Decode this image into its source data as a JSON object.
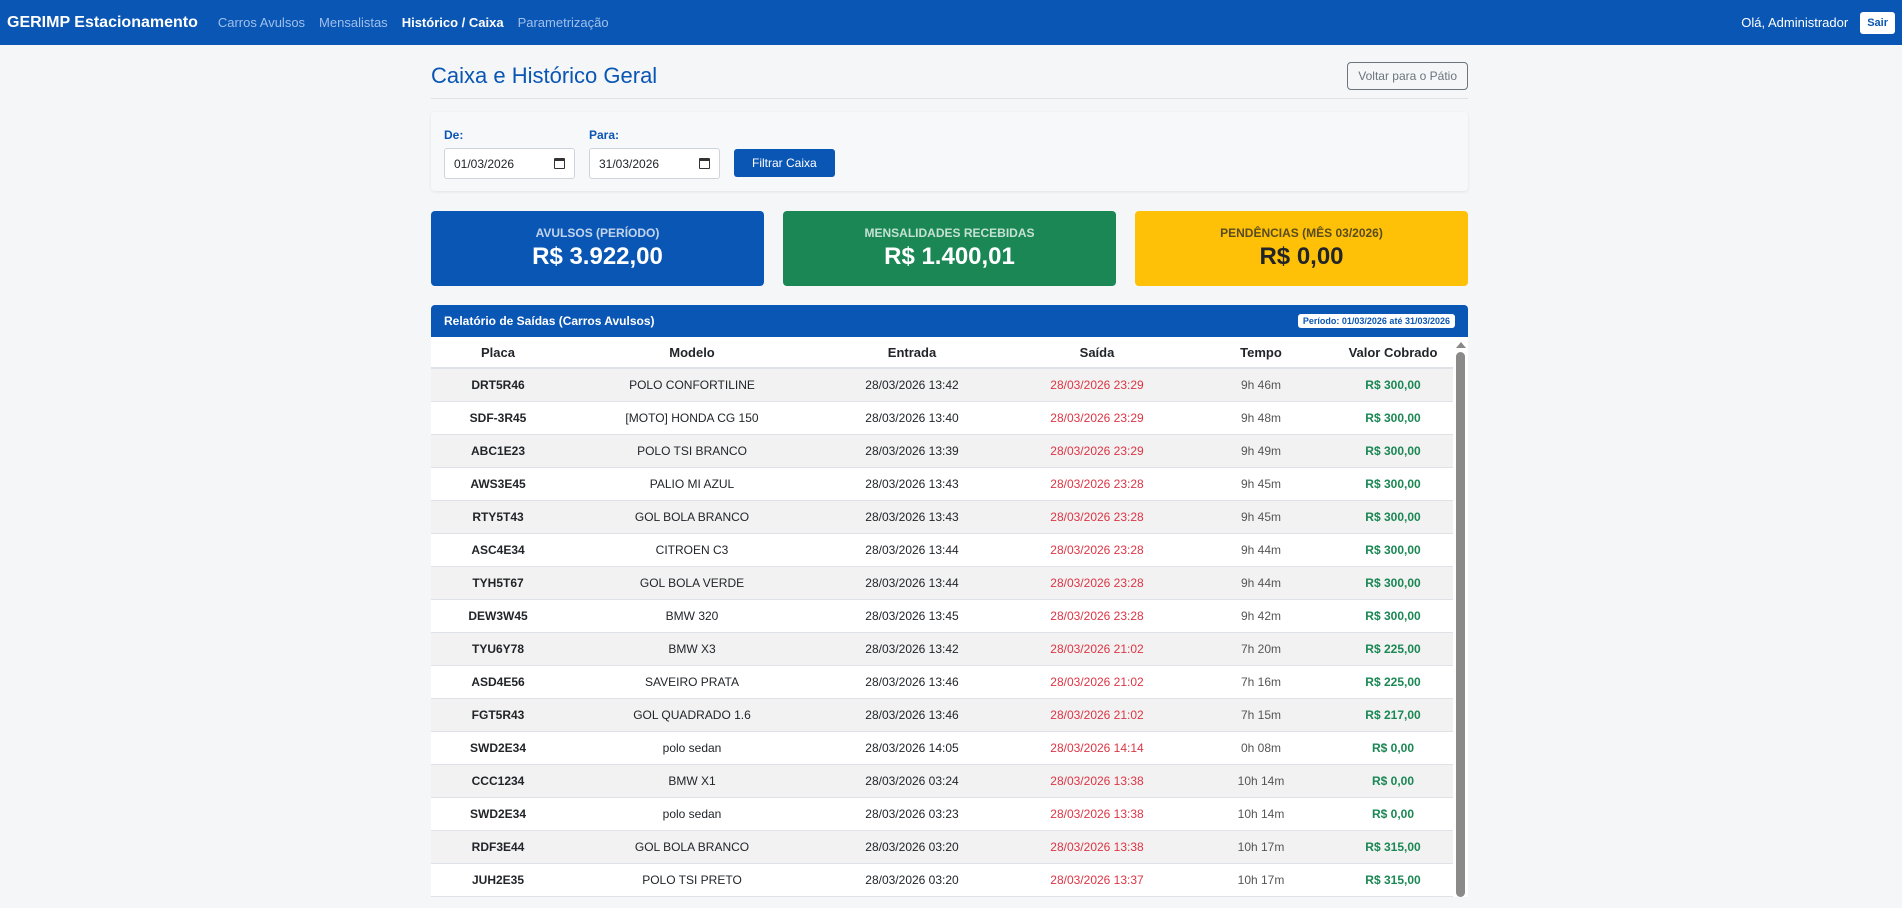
{
  "navbar": {
    "brand": "GERIMP Estacionamento",
    "links": [
      {
        "label": "Carros Avulsos",
        "active": false
      },
      {
        "label": "Mensalistas",
        "active": false
      },
      {
        "label": "Histórico / Caixa",
        "active": true
      },
      {
        "label": "Parametrização",
        "active": false
      }
    ],
    "greeting": "Olá, Administrador",
    "logout_label": "Sair"
  },
  "page": {
    "title": "Caixa e Histórico Geral",
    "back_button": "Voltar para o Pátio"
  },
  "filter": {
    "from_label": "De:",
    "from_value": "01/03/2026",
    "to_label": "Para:",
    "to_value": "31/03/2026",
    "submit_label": "Filtrar Caixa"
  },
  "summary": [
    {
      "label": "AVULSOS (PERÍODO)",
      "value": "R$ 3.922,00",
      "color": "#0a56b4"
    },
    {
      "label": "MENSALIDADES RECEBIDAS",
      "value": "R$ 1.400,01",
      "color": "#1a8754"
    },
    {
      "label": "PENDÊNCIAS (MÊS 03/2026)",
      "value": "R$ 0,00",
      "color": "#ffc107"
    }
  ],
  "report": {
    "title": "Relatório de Saídas (Carros Avulsos)",
    "period": "Período: 01/03/2026 até 31/03/2026",
    "columns": [
      "Placa",
      "Modelo",
      "Entrada",
      "Saída",
      "Tempo",
      "Valor Cobrado"
    ],
    "rows": [
      {
        "placa": "DRT5R46",
        "modelo": "POLO CONFORTILINE",
        "entrada": "28/03/2026 13:42",
        "saida": "28/03/2026 23:29",
        "tempo": "9h 46m",
        "valor": "R$ 300,00"
      },
      {
        "placa": "SDF-3R45",
        "modelo": "[MOTO] HONDA CG 150",
        "entrada": "28/03/2026 13:40",
        "saida": "28/03/2026 23:29",
        "tempo": "9h 48m",
        "valor": "R$ 300,00"
      },
      {
        "placa": "ABC1E23",
        "modelo": "POLO TSI BRANCO",
        "entrada": "28/03/2026 13:39",
        "saida": "28/03/2026 23:29",
        "tempo": "9h 49m",
        "valor": "R$ 300,00"
      },
      {
        "placa": "AWS3E45",
        "modelo": "PALIO MI AZUL",
        "entrada": "28/03/2026 13:43",
        "saida": "28/03/2026 23:28",
        "tempo": "9h 45m",
        "valor": "R$ 300,00"
      },
      {
        "placa": "RTY5T43",
        "modelo": "GOL BOLA BRANCO",
        "entrada": "28/03/2026 13:43",
        "saida": "28/03/2026 23:28",
        "tempo": "9h 45m",
        "valor": "R$ 300,00"
      },
      {
        "placa": "ASC4E34",
        "modelo": "CITROEN C3",
        "entrada": "28/03/2026 13:44",
        "saida": "28/03/2026 23:28",
        "tempo": "9h 44m",
        "valor": "R$ 300,00"
      },
      {
        "placa": "TYH5T67",
        "modelo": "GOL BOLA VERDE",
        "entrada": "28/03/2026 13:44",
        "saida": "28/03/2026 23:28",
        "tempo": "9h 44m",
        "valor": "R$ 300,00"
      },
      {
        "placa": "DEW3W45",
        "modelo": "BMW 320",
        "entrada": "28/03/2026 13:45",
        "saida": "28/03/2026 23:28",
        "tempo": "9h 42m",
        "valor": "R$ 300,00"
      },
      {
        "placa": "TYU6Y78",
        "modelo": "BMW X3",
        "entrada": "28/03/2026 13:42",
        "saida": "28/03/2026 21:02",
        "tempo": "7h 20m",
        "valor": "R$ 225,00"
      },
      {
        "placa": "ASD4E56",
        "modelo": "SAVEIRO PRATA",
        "entrada": "28/03/2026 13:46",
        "saida": "28/03/2026 21:02",
        "tempo": "7h 16m",
        "valor": "R$ 225,00"
      },
      {
        "placa": "FGT5R43",
        "modelo": "GOL QUADRADO 1.6",
        "entrada": "28/03/2026 13:46",
        "saida": "28/03/2026 21:02",
        "tempo": "7h 15m",
        "valor": "R$ 217,00"
      },
      {
        "placa": "SWD2E34",
        "modelo": "polo sedan",
        "entrada": "28/03/2026 14:05",
        "saida": "28/03/2026 14:14",
        "tempo": "0h 08m",
        "valor": "R$ 0,00"
      },
      {
        "placa": "CCC1234",
        "modelo": "BMW X1",
        "entrada": "28/03/2026 03:24",
        "saida": "28/03/2026 13:38",
        "tempo": "10h 14m",
        "valor": "R$ 0,00"
      },
      {
        "placa": "SWD2E34",
        "modelo": "polo sedan",
        "entrada": "28/03/2026 03:23",
        "saida": "28/03/2026 13:38",
        "tempo": "10h 14m",
        "valor": "R$ 0,00"
      },
      {
        "placa": "RDF3E44",
        "modelo": "GOL BOLA BRANCO",
        "entrada": "28/03/2026 03:20",
        "saida": "28/03/2026 13:38",
        "tempo": "10h 17m",
        "valor": "R$ 315,00"
      },
      {
        "placa": "JUH2E35",
        "modelo": "POLO TSI PRETO",
        "entrada": "28/03/2026 03:20",
        "saida": "28/03/2026 13:37",
        "tempo": "10h 17m",
        "valor": "R$ 315,00"
      }
    ]
  }
}
